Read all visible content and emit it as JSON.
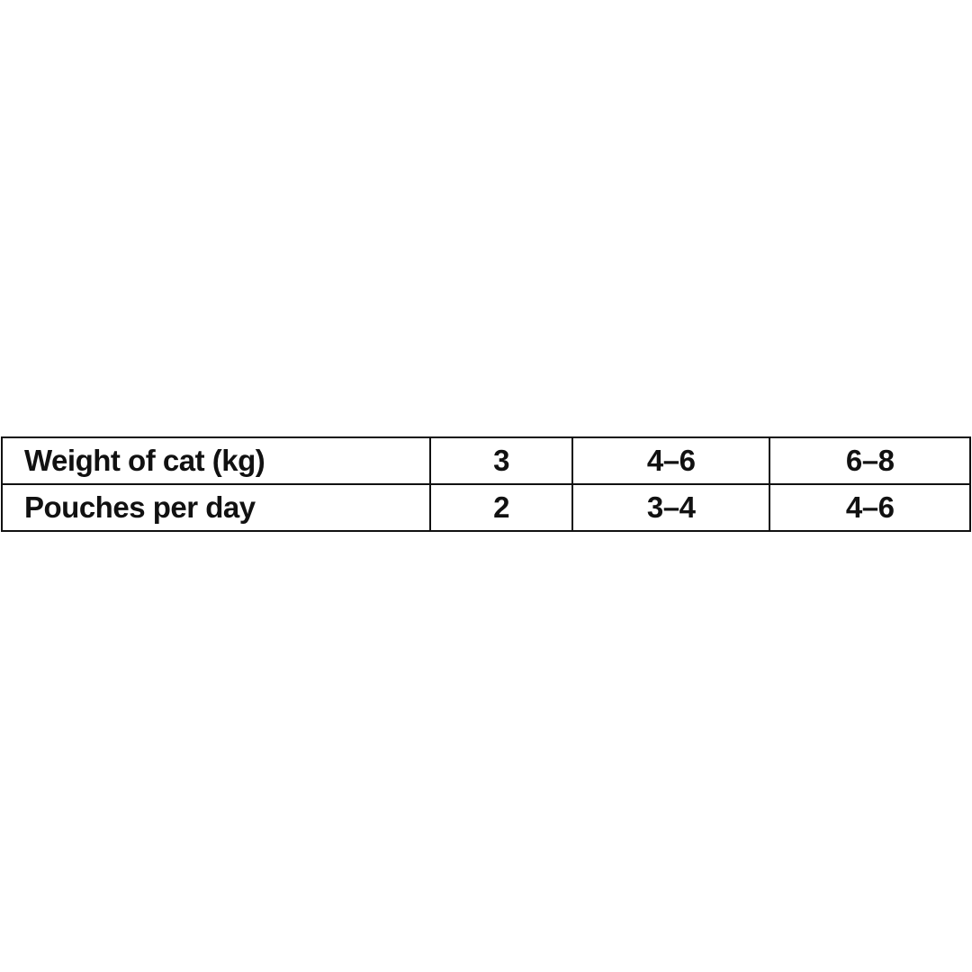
{
  "table": {
    "rows": [
      {
        "label": "Weight of cat (kg)",
        "cells": [
          "3",
          "4–6",
          "6–8"
        ]
      },
      {
        "label": "Pouches per day",
        "cells": [
          "2",
          "3–4",
          "4–6"
        ]
      }
    ]
  }
}
